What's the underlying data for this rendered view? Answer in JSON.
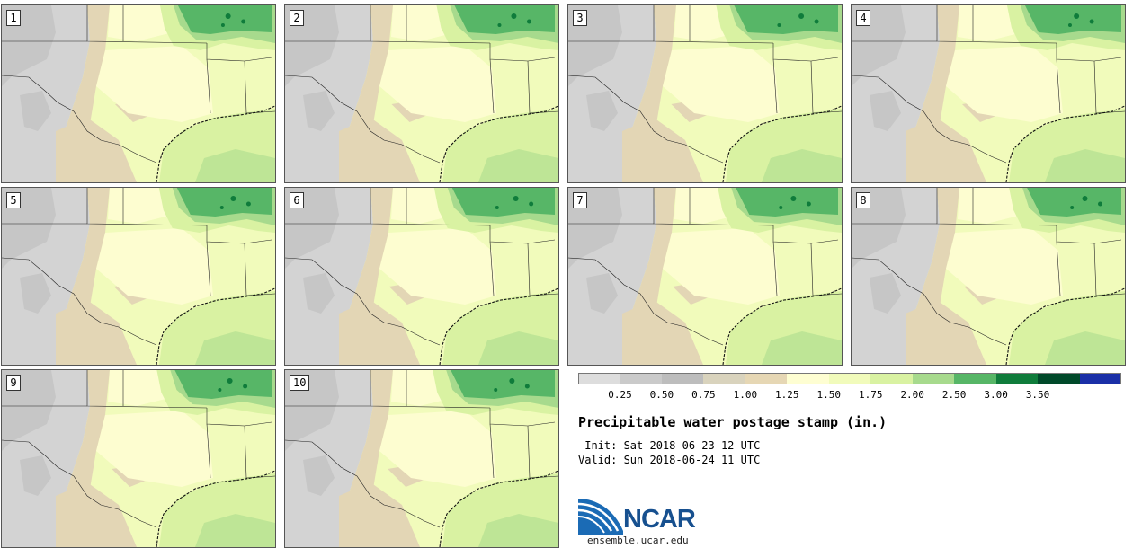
{
  "stamps": [
    {
      "label": "1"
    },
    {
      "label": "2"
    },
    {
      "label": "3"
    },
    {
      "label": "4"
    },
    {
      "label": "5"
    },
    {
      "label": "6"
    },
    {
      "label": "7"
    },
    {
      "label": "8"
    },
    {
      "label": "9"
    },
    {
      "label": "10"
    }
  ],
  "legend": {
    "ticks": [
      "0.25",
      "0.50",
      "0.75",
      "1.00",
      "1.25",
      "1.50",
      "1.75",
      "2.00",
      "2.50",
      "3.00",
      "3.50"
    ],
    "colors": [
      "#dddddd",
      "#cacaca",
      "#bdbdbd",
      "#d9d3bd",
      "#e6d7b4",
      "#fefed2",
      "#f1fbbb",
      "#d9f2a2",
      "#a7da8d",
      "#57b667",
      "#0f7c3b",
      "#00492a",
      "#1a2fa7"
    ]
  },
  "title": "Precipitable water postage stamp (in.)",
  "init": " Init: Sat 2018-06-23 12 UTC",
  "valid": "Valid: Sun 2018-06-24 11 UTC",
  "logo": {
    "name": "NCAR",
    "url": "ensemble.ucar.edu",
    "color": "#17508f"
  },
  "map_colors": {
    "land_gray": "#d3d3d3",
    "land_gray_dark": "#c6c6c6",
    "tan": "#e3d6b5",
    "pale": "#fdfdd0",
    "lightgreen": "#f1fbbb",
    "green": "#d9f2a2",
    "medgreen": "#a7da8d",
    "darkgreen": "#57b667",
    "deepgreen": "#0f7c3b"
  }
}
